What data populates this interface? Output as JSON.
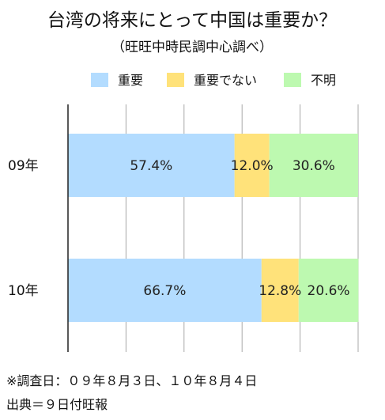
{
  "chart_data": {
    "type": "bar",
    "orientation": "horizontal",
    "stacked": true,
    "normalized_percent": true,
    "title": "台湾の将来にとって中国は重要か？",
    "subtitle": "（旺旺中時民調中心調べ）",
    "categories": [
      "09年",
      "10年"
    ],
    "series": [
      {
        "name": "重要",
        "color": "#b3dcff",
        "values": [
          57.4,
          66.7
        ],
        "labels": [
          "57.4%",
          "66.7%"
        ]
      },
      {
        "name": "重要でない",
        "color": "#ffe27a",
        "values": [
          12.0,
          12.8
        ],
        "labels": [
          "12.0%",
          "12.8%"
        ]
      },
      {
        "name": "不明",
        "color": "#bdf9b0",
        "values": [
          30.6,
          20.6
        ],
        "labels": [
          "30.6%",
          "20.6%"
        ]
      }
    ],
    "xlim": [
      0,
      100
    ],
    "grid": true,
    "gridline_count": 5,
    "legend_position": "top",
    "notes": [
      "※調査日：０９年８月３日、１０年８月４日",
      "出典＝９日付旺報"
    ]
  }
}
